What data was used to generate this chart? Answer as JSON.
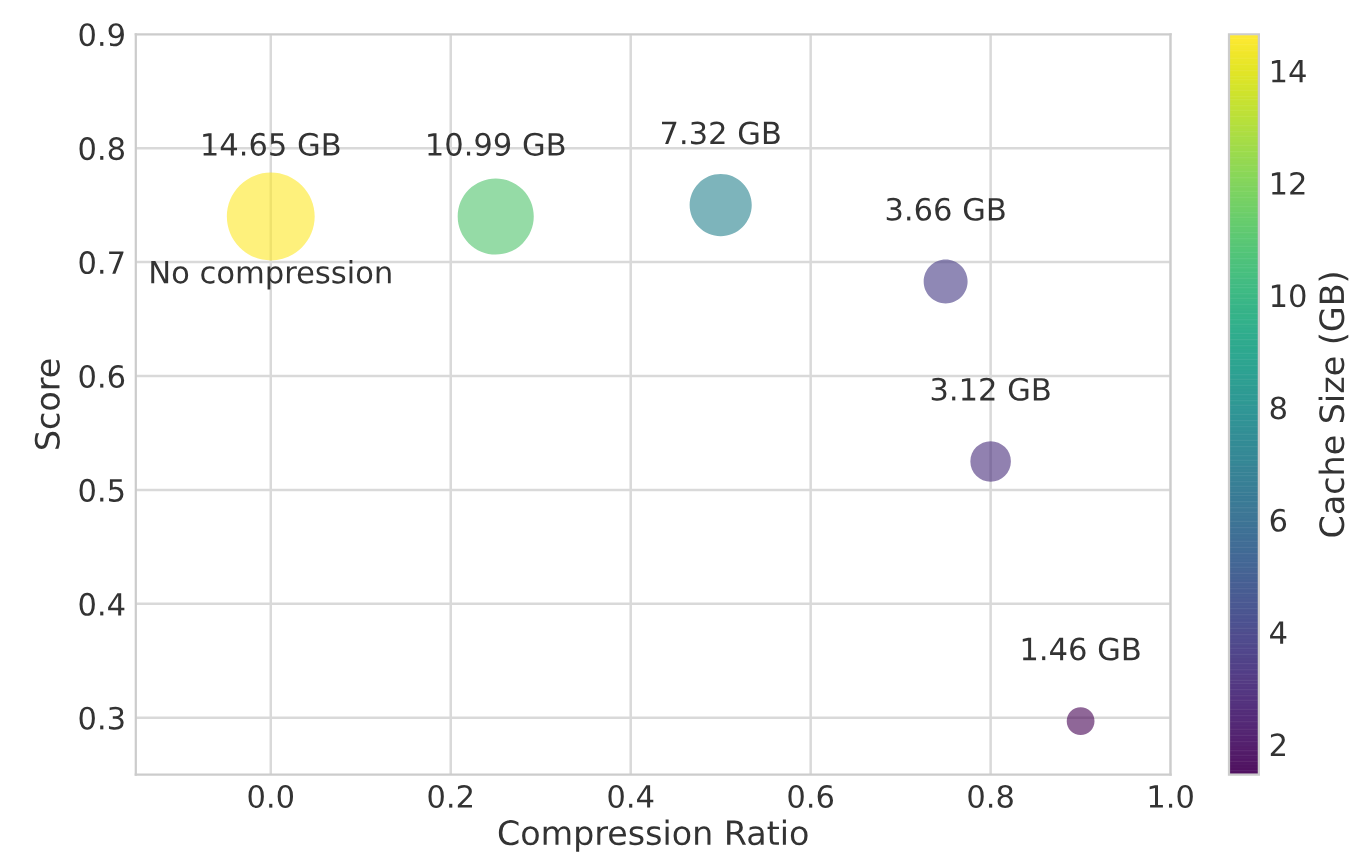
{
  "chart_data": {
    "type": "bubble",
    "xlabel": "Compression Ratio",
    "ylabel": "Score",
    "clabel": "Cache Size (GB)",
    "x": [
      0,
      0.25,
      0.5,
      0.75,
      0.8,
      0.9
    ],
    "values": [
      0.74,
      0.74,
      0.75,
      0.683,
      0.525,
      0.297
    ],
    "sizes": [
      1,
      0.75,
      0.5,
      0.25,
      0.213,
      0.1
    ],
    "cvalues": [
      14.65,
      10.99,
      7.32,
      3.66,
      3.12,
      1.46
    ],
    "clim": [
      1.46,
      14.65
    ],
    "cticks": [
      2,
      4,
      6,
      8,
      10,
      12,
      14
    ],
    "xlim": [
      -0.15,
      1.0
    ],
    "xticks": [
      {
        "value": 0,
        "label": "0.0"
      },
      0.2,
      0.4,
      0.6,
      0.8,
      {
        "value": 1,
        "label": "1.0"
      }
    ],
    "ylim": [
      0.25,
      0.9
    ],
    "yticks": [
      0.3,
      0.4,
      0.5,
      0.6,
      0.7,
      0.8,
      0.9
    ],
    "grid": true,
    "annotations": [
      {
        "text": "14.65 GB",
        "x": 0,
        "y": 0.74
      },
      {
        "text": "10.99 GB",
        "x": 0.25,
        "y": 0.74
      },
      {
        "text": "7.32 GB",
        "x": 0.5,
        "y": 0.75
      },
      {
        "text": "3.66 GB",
        "x": 0.75,
        "y": 0.683
      },
      {
        "text": "3.12 GB",
        "x": 0.8,
        "y": 0.525
      },
      {
        "text": "1.46 GB",
        "x": 0.9,
        "y": 0.297
      },
      {
        "text": "No compression",
        "x": 0,
        "y": 0.74
      }
    ]
  }
}
